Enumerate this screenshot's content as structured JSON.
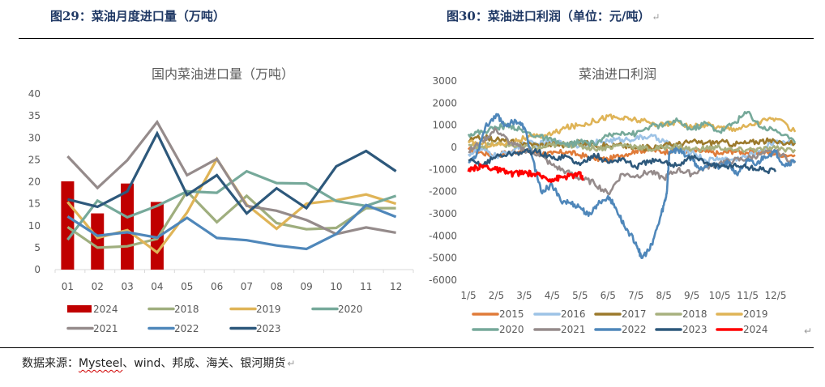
{
  "document": {
    "figure_left_title": "图29：菜油月度进口量（万吨）",
    "figure_right_title": "图30：菜油进口利润（单位：元/吨）",
    "paragraph_mark": "↵",
    "source_label": "数据来源：",
    "source_misspelled": "Mysteel",
    "source_rest": "、wind、邦成、海关、银河期货"
  },
  "chart_data": [
    {
      "type": "bar+line",
      "title": "国内菜油进口量（万吨）",
      "xlabel": "",
      "ylabel": "",
      "categories": [
        "01",
        "02",
        "03",
        "04",
        "05",
        "06",
        "07",
        "08",
        "09",
        "10",
        "11",
        "12"
      ],
      "ylim": [
        0,
        40
      ],
      "yticks": [
        0,
        5,
        10,
        15,
        20,
        25,
        30,
        35,
        40
      ],
      "grid": false,
      "legend_position": "bottom",
      "bar_series": {
        "name": "2024",
        "color": "#c00000",
        "values": [
          20.1,
          12.8,
          19.6,
          15.4,
          null,
          null,
          null,
          null,
          null,
          null,
          null,
          null
        ]
      },
      "series": [
        {
          "name": "2018",
          "color": "#9fae7e",
          "values": [
            9.7,
            5.0,
            5.3,
            7.0,
            17.8,
            10.8,
            16.8,
            10.6,
            9.2,
            9.5,
            14.0,
            14.0
          ]
        },
        {
          "name": "2019",
          "color": "#dfb457",
          "values": [
            15.4,
            7.2,
            9.0,
            3.9,
            13.0,
            25.2,
            14.8,
            9.3,
            15.0,
            15.8,
            17.1,
            15.0
          ]
        },
        {
          "name": "2020",
          "color": "#76a99a",
          "values": [
            6.8,
            15.7,
            11.9,
            14.5,
            17.8,
            17.5,
            22.4,
            19.7,
            19.6,
            15.6,
            14.5,
            16.8
          ]
        },
        {
          "name": "2021",
          "color": "#958b8b",
          "values": [
            25.8,
            18.6,
            24.9,
            33.6,
            21.5,
            25.2,
            14.5,
            13.4,
            11.3,
            8.1,
            9.6,
            8.4
          ]
        },
        {
          "name": "2022",
          "color": "#4f87ba",
          "values": [
            12.1,
            7.7,
            8.5,
            7.3,
            11.8,
            7.2,
            6.7,
            5.5,
            4.7,
            8.1,
            14.7,
            12.0
          ]
        },
        {
          "name": "2023",
          "color": "#2d587b",
          "values": [
            16.0,
            14.3,
            17.8,
            31.0,
            17.0,
            21.5,
            12.8,
            18.5,
            14.0,
            23.5,
            27.0,
            22.4
          ]
        }
      ]
    },
    {
      "type": "line",
      "title": "菜油进口利润",
      "xlabel": "",
      "ylabel": "",
      "xticks": [
        "1/5",
        "2/5",
        "3/5",
        "4/5",
        "5/5",
        "6/5",
        "7/5",
        "8/5",
        "9/5",
        "10/5",
        "11/5",
        "12/5"
      ],
      "ylim": [
        -6000,
        3000
      ],
      "yticks": [
        3000,
        2000,
        1000,
        0,
        -1000,
        -2000,
        -3000,
        -4000,
        -5000,
        -6000
      ],
      "grid": false,
      "legend_position": "bottom",
      "x_unit": "month (1 = Jan 5)",
      "series": [
        {
          "name": "2015",
          "color": "#e07b39",
          "x": [
            1,
            1.5,
            2,
            2.5,
            3,
            3.5,
            4,
            4.5,
            5,
            5.5,
            6,
            6.5,
            7,
            7.5,
            8,
            8.5,
            9,
            9.5,
            10,
            10.5,
            11,
            11.5,
            12,
            12.7
          ],
          "values": [
            -100,
            -250,
            -350,
            -200,
            -150,
            -250,
            -300,
            -200,
            -350,
            -500,
            -550,
            -350,
            -150,
            -100,
            -200,
            -100,
            -150,
            -200,
            -300,
            -150,
            -250,
            -200,
            -300,
            -350
          ]
        },
        {
          "name": "2016",
          "color": "#9dc3e6",
          "x": [
            1,
            1.5,
            2,
            2.5,
            3,
            3.5,
            4,
            4.5,
            5,
            5.5,
            6,
            6.5,
            7,
            7.5,
            8,
            8.5,
            9,
            9.5,
            10,
            10.5,
            11,
            11.5,
            12,
            12.7
          ],
          "values": [
            -300,
            -100,
            -400,
            -200,
            200,
            150,
            250,
            150,
            100,
            200,
            300,
            350,
            400,
            500,
            300,
            -150,
            -200,
            -600,
            -500,
            -550,
            -400,
            -100,
            300,
            200
          ]
        },
        {
          "name": "2017",
          "color": "#9c7a2c",
          "x": [
            1,
            1.5,
            2,
            2.5,
            3,
            3.5,
            4,
            4.5,
            5,
            5.5,
            6,
            6.5,
            7,
            7.5,
            8,
            8.5,
            9,
            9.5,
            10,
            10.5,
            11,
            11.5,
            12,
            12.7
          ],
          "values": [
            300,
            450,
            350,
            250,
            200,
            100,
            150,
            100,
            200,
            150,
            50,
            100,
            -50,
            0,
            100,
            150,
            250,
            200,
            250,
            150,
            200,
            300,
            250,
            200
          ]
        },
        {
          "name": "2018",
          "color": "#a8b17f",
          "x": [
            1,
            1.5,
            2,
            2.5,
            3,
            3.5,
            4,
            4.5,
            5,
            5.5,
            6,
            6.5,
            7,
            7.5,
            8,
            8.5,
            9,
            9.5,
            10,
            10.5,
            11,
            11.5,
            12,
            12.7
          ],
          "values": [
            100,
            50,
            150,
            100,
            0,
            -50,
            100,
            150,
            50,
            -50,
            0,
            100,
            50,
            -100,
            0,
            50,
            -100,
            -50,
            0,
            -150,
            -100,
            -100,
            -50,
            -100
          ]
        },
        {
          "name": "2019",
          "color": "#dfb457",
          "x": [
            1,
            1.5,
            2,
            2.5,
            3,
            3.5,
            4,
            4.5,
            5,
            5.5,
            6,
            6.5,
            7,
            7.5,
            8,
            8.5,
            9,
            9.5,
            10,
            10.5,
            11,
            11.5,
            12,
            12.7
          ],
          "values": [
            200,
            150,
            100,
            250,
            400,
            500,
            600,
            900,
            1000,
            1200,
            1400,
            1300,
            1250,
            1100,
            1000,
            1200,
            900,
            1050,
            900,
            850,
            950,
            1200,
            1300,
            700
          ]
        },
        {
          "name": "2020",
          "color": "#76a99a",
          "x": [
            1,
            1.5,
            2,
            2.5,
            3,
            3.5,
            4,
            4.5,
            5,
            5.5,
            6,
            6.5,
            7,
            7.5,
            8,
            8.5,
            9,
            9.5,
            10,
            10.5,
            11,
            11.5,
            12,
            12.7
          ],
          "values": [
            600,
            700,
            900,
            1000,
            700,
            500,
            300,
            100,
            250,
            150,
            500,
            700,
            600,
            950,
            1000,
            1200,
            800,
            1100,
            700,
            1100,
            1600,
            900,
            800,
            200
          ]
        },
        {
          "name": "2021",
          "color": "#958b8b",
          "x": [
            1,
            1.5,
            2,
            2.5,
            3,
            3.5,
            4,
            4.5,
            5,
            5.5,
            6,
            6.5,
            7,
            7.5,
            8,
            8.5,
            9,
            9.5,
            10,
            10.5,
            11,
            11.5,
            12,
            12.7
          ],
          "values": [
            -200,
            300,
            800,
            200,
            -100,
            -300,
            -800,
            -1100,
            -1400,
            -1600,
            -2100,
            -1200,
            -1300,
            -1100,
            -1400,
            -1000,
            -1200,
            -900,
            -700,
            -600,
            -500,
            -300,
            -200,
            -700
          ]
        },
        {
          "name": "2022",
          "color": "#4f87ba",
          "x": [
            1,
            1.3,
            1.6,
            2,
            2.3,
            2.7,
            3,
            3.3,
            3.6,
            4,
            4.3,
            4.6,
            5,
            5.3,
            5.6,
            6,
            6.3,
            6.6,
            7,
            7.2,
            7.5,
            7.8,
            8,
            8.1,
            8.2,
            8.5,
            9,
            9.3,
            9.6,
            10,
            10.3,
            10.6,
            11,
            11.3,
            11.6,
            12,
            12.3,
            12.7
          ],
          "values": [
            -700,
            -300,
            900,
            1500,
            1000,
            1200,
            900,
            -500,
            -2000,
            -1700,
            -2400,
            -2500,
            -2700,
            -3100,
            -2600,
            -2200,
            -2800,
            -3600,
            -4300,
            -5000,
            -4600,
            -3500,
            -2600,
            -2100,
            -200,
            -100,
            -500,
            -1000,
            -700,
            -900,
            -700,
            -1200,
            -600,
            -800,
            -400,
            -200,
            -800,
            -600
          ]
        },
        {
          "name": "2023",
          "color": "#2d587b",
          "x": [
            1,
            1.5,
            2,
            2.5,
            3,
            3.5,
            4,
            4.5,
            5,
            5.5,
            6,
            6.5,
            7,
            7.5,
            8,
            8.5,
            9,
            9.5,
            10,
            10.5,
            11,
            11.5,
            12
          ],
          "values": [
            -600,
            -800,
            -400,
            -300,
            -200,
            -200,
            -500,
            -400,
            -800,
            -300,
            -700,
            -500,
            -900,
            -600,
            -700,
            -800,
            -400,
            -700,
            -900,
            -800,
            -900,
            -1000,
            -1100
          ]
        },
        {
          "name": "2024",
          "color": "#ff0000",
          "x": [
            1,
            1.3,
            1.6,
            2,
            2.3,
            2.6,
            3,
            3.3,
            3.6,
            4,
            4.3,
            4.6,
            5,
            5.1
          ],
          "values": [
            -1100,
            -900,
            -850,
            -1000,
            -1100,
            -1200,
            -1150,
            -1200,
            -1300,
            -1450,
            -1350,
            -1300,
            -1200,
            -1500
          ]
        }
      ]
    }
  ]
}
